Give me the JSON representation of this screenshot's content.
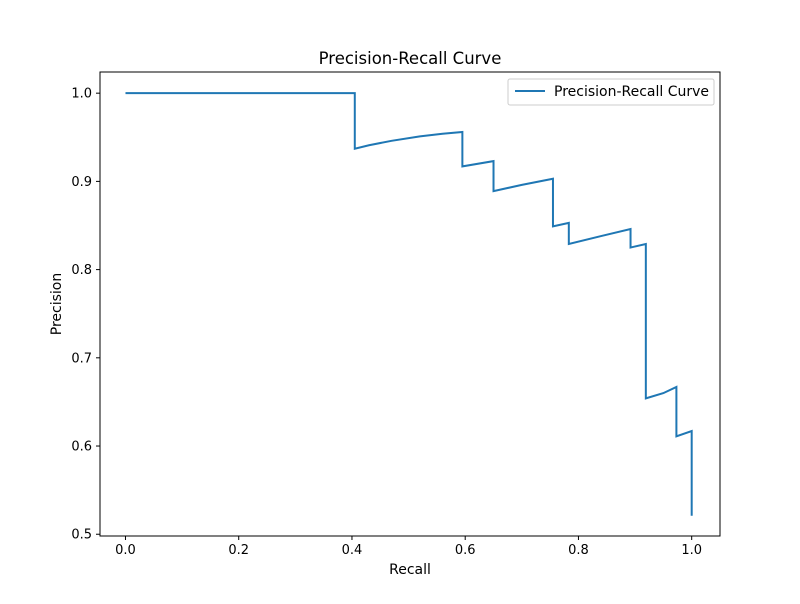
{
  "chart_data": {
    "type": "line",
    "title": "Precision-Recall Curve",
    "xlabel": "Recall",
    "ylabel": "Precision",
    "xlim": [
      -0.045,
      1.05
    ],
    "ylim": [
      0.498,
      1.024
    ],
    "xticks": [
      0.0,
      0.2,
      0.4,
      0.6,
      0.8,
      1.0
    ],
    "xtick_labels": [
      "0.0",
      "0.2",
      "0.4",
      "0.6",
      "0.8",
      "1.0"
    ],
    "yticks": [
      0.5,
      0.6,
      0.7,
      0.8,
      0.9,
      1.0
    ],
    "ytick_labels": [
      "0.5",
      "0.6",
      "0.7",
      "0.8",
      "0.9",
      "1.0"
    ],
    "grid": false,
    "legend_position": "top-right",
    "series": [
      {
        "name": "Precision-Recall Curve",
        "color": "#1f77b4",
        "x": [
          0.0,
          0.405,
          0.405,
          0.43,
          0.47,
          0.52,
          0.56,
          0.595,
          0.595,
          0.65,
          0.65,
          0.7,
          0.755,
          0.755,
          0.783,
          0.783,
          0.84,
          0.892,
          0.892,
          0.919,
          0.919,
          0.95,
          0.973,
          0.973,
          1.0,
          1.0
        ],
        "y": [
          1.0,
          1.0,
          0.937,
          0.941,
          0.946,
          0.951,
          0.954,
          0.956,
          0.917,
          0.923,
          0.889,
          0.896,
          0.903,
          0.849,
          0.853,
          0.829,
          0.838,
          0.846,
          0.825,
          0.829,
          0.654,
          0.66,
          0.667,
          0.611,
          0.617,
          0.521
        ]
      }
    ]
  }
}
